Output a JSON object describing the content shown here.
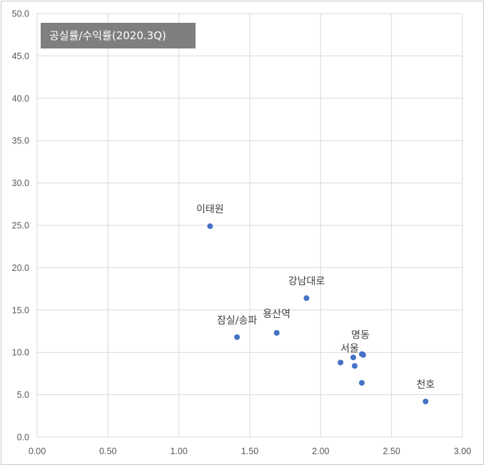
{
  "chart_data": {
    "type": "scatter",
    "title": "공실률/수익률(2020.3Q)",
    "xlabel": "",
    "ylabel": "",
    "xlim": [
      0,
      3
    ],
    "ylim": [
      0,
      50
    ],
    "x_ticks": [
      "0.00",
      "0.50",
      "1.00",
      "1.50",
      "2.00",
      "2.50",
      "3.00"
    ],
    "y_ticks": [
      "0.0",
      "5.0",
      "10.0",
      "15.0",
      "20.0",
      "25.0",
      "30.0",
      "35.0",
      "40.0",
      "45.0",
      "50.0"
    ],
    "grid": true,
    "marker_color": "#4472c4",
    "points": [
      {
        "x": 1.22,
        "y": 24.9,
        "label": "이태원"
      },
      {
        "x": 1.9,
        "y": 16.4,
        "label": "강남대로"
      },
      {
        "x": 1.41,
        "y": 11.8,
        "label": "잠실/송파"
      },
      {
        "x": 1.69,
        "y": 12.3,
        "label": "용산역"
      },
      {
        "x": 2.29,
        "y": 9.8,
        "label": "명동"
      },
      {
        "x": 2.23,
        "y": 9.4,
        "label": "서울"
      },
      {
        "x": 2.3,
        "y": 9.7,
        "label": ""
      },
      {
        "x": 2.14,
        "y": 8.8,
        "label": ""
      },
      {
        "x": 2.24,
        "y": 8.4,
        "label": ""
      },
      {
        "x": 2.29,
        "y": 6.4,
        "label": ""
      },
      {
        "x": 2.74,
        "y": 4.2,
        "label": "천호"
      }
    ]
  }
}
